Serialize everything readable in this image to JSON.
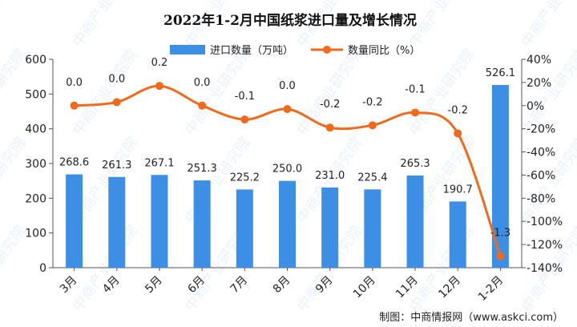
{
  "chart_data": {
    "type": "bar+line",
    "title": "2022年1-2月中国纸浆进口量及增长情况",
    "categories": [
      "3月",
      "4月",
      "5月",
      "6月",
      "7月",
      "8月",
      "9月",
      "10月",
      "11月",
      "12月",
      "1-2月"
    ],
    "series": [
      {
        "name": "进口数量（万吨）",
        "type": "bar",
        "axis": "left",
        "values": [
          268.6,
          261.3,
          267.1,
          251.3,
          225.2,
          250.0,
          231.0,
          225.4,
          265.3,
          190.7,
          526.1
        ],
        "labels": [
          "268.6",
          "261.3",
          "267.1",
          "251.3",
          "225.2",
          "250.0",
          "231.0",
          "225.4",
          "265.3",
          "190.7",
          "526.1"
        ]
      },
      {
        "name": "数量同比（%）",
        "type": "line",
        "axis": "right",
        "values": [
          0.0,
          3.0,
          17.0,
          0.0,
          -12.0,
          -3.0,
          -19.0,
          -17.0,
          -6.0,
          -24.0,
          -130.0
        ],
        "labels": [
          "0.0",
          "0.0",
          "0.2",
          "0.0",
          "-0.1",
          "0.0",
          "-0.2",
          "-0.2",
          "-0.1",
          "-0.2",
          "-1.3"
        ]
      }
    ],
    "y_left": {
      "min": 0,
      "max": 600,
      "ticks": [
        "0",
        "100",
        "200",
        "300",
        "400",
        "500",
        "600"
      ]
    },
    "y_right": {
      "min": -140,
      "max": 40,
      "ticks": [
        "-140%",
        "-120%",
        "-100%",
        "-80%",
        "-60%",
        "-40%",
        "-20%",
        "0%",
        "20%",
        "40%"
      ]
    },
    "legend_position": "top",
    "grid": false,
    "colors": {
      "bar": "#3d8fe6",
      "line": "#f06a1c"
    }
  },
  "source": "制图：中商情报网（www.askci.com）",
  "watermark": "中商产业研究院"
}
